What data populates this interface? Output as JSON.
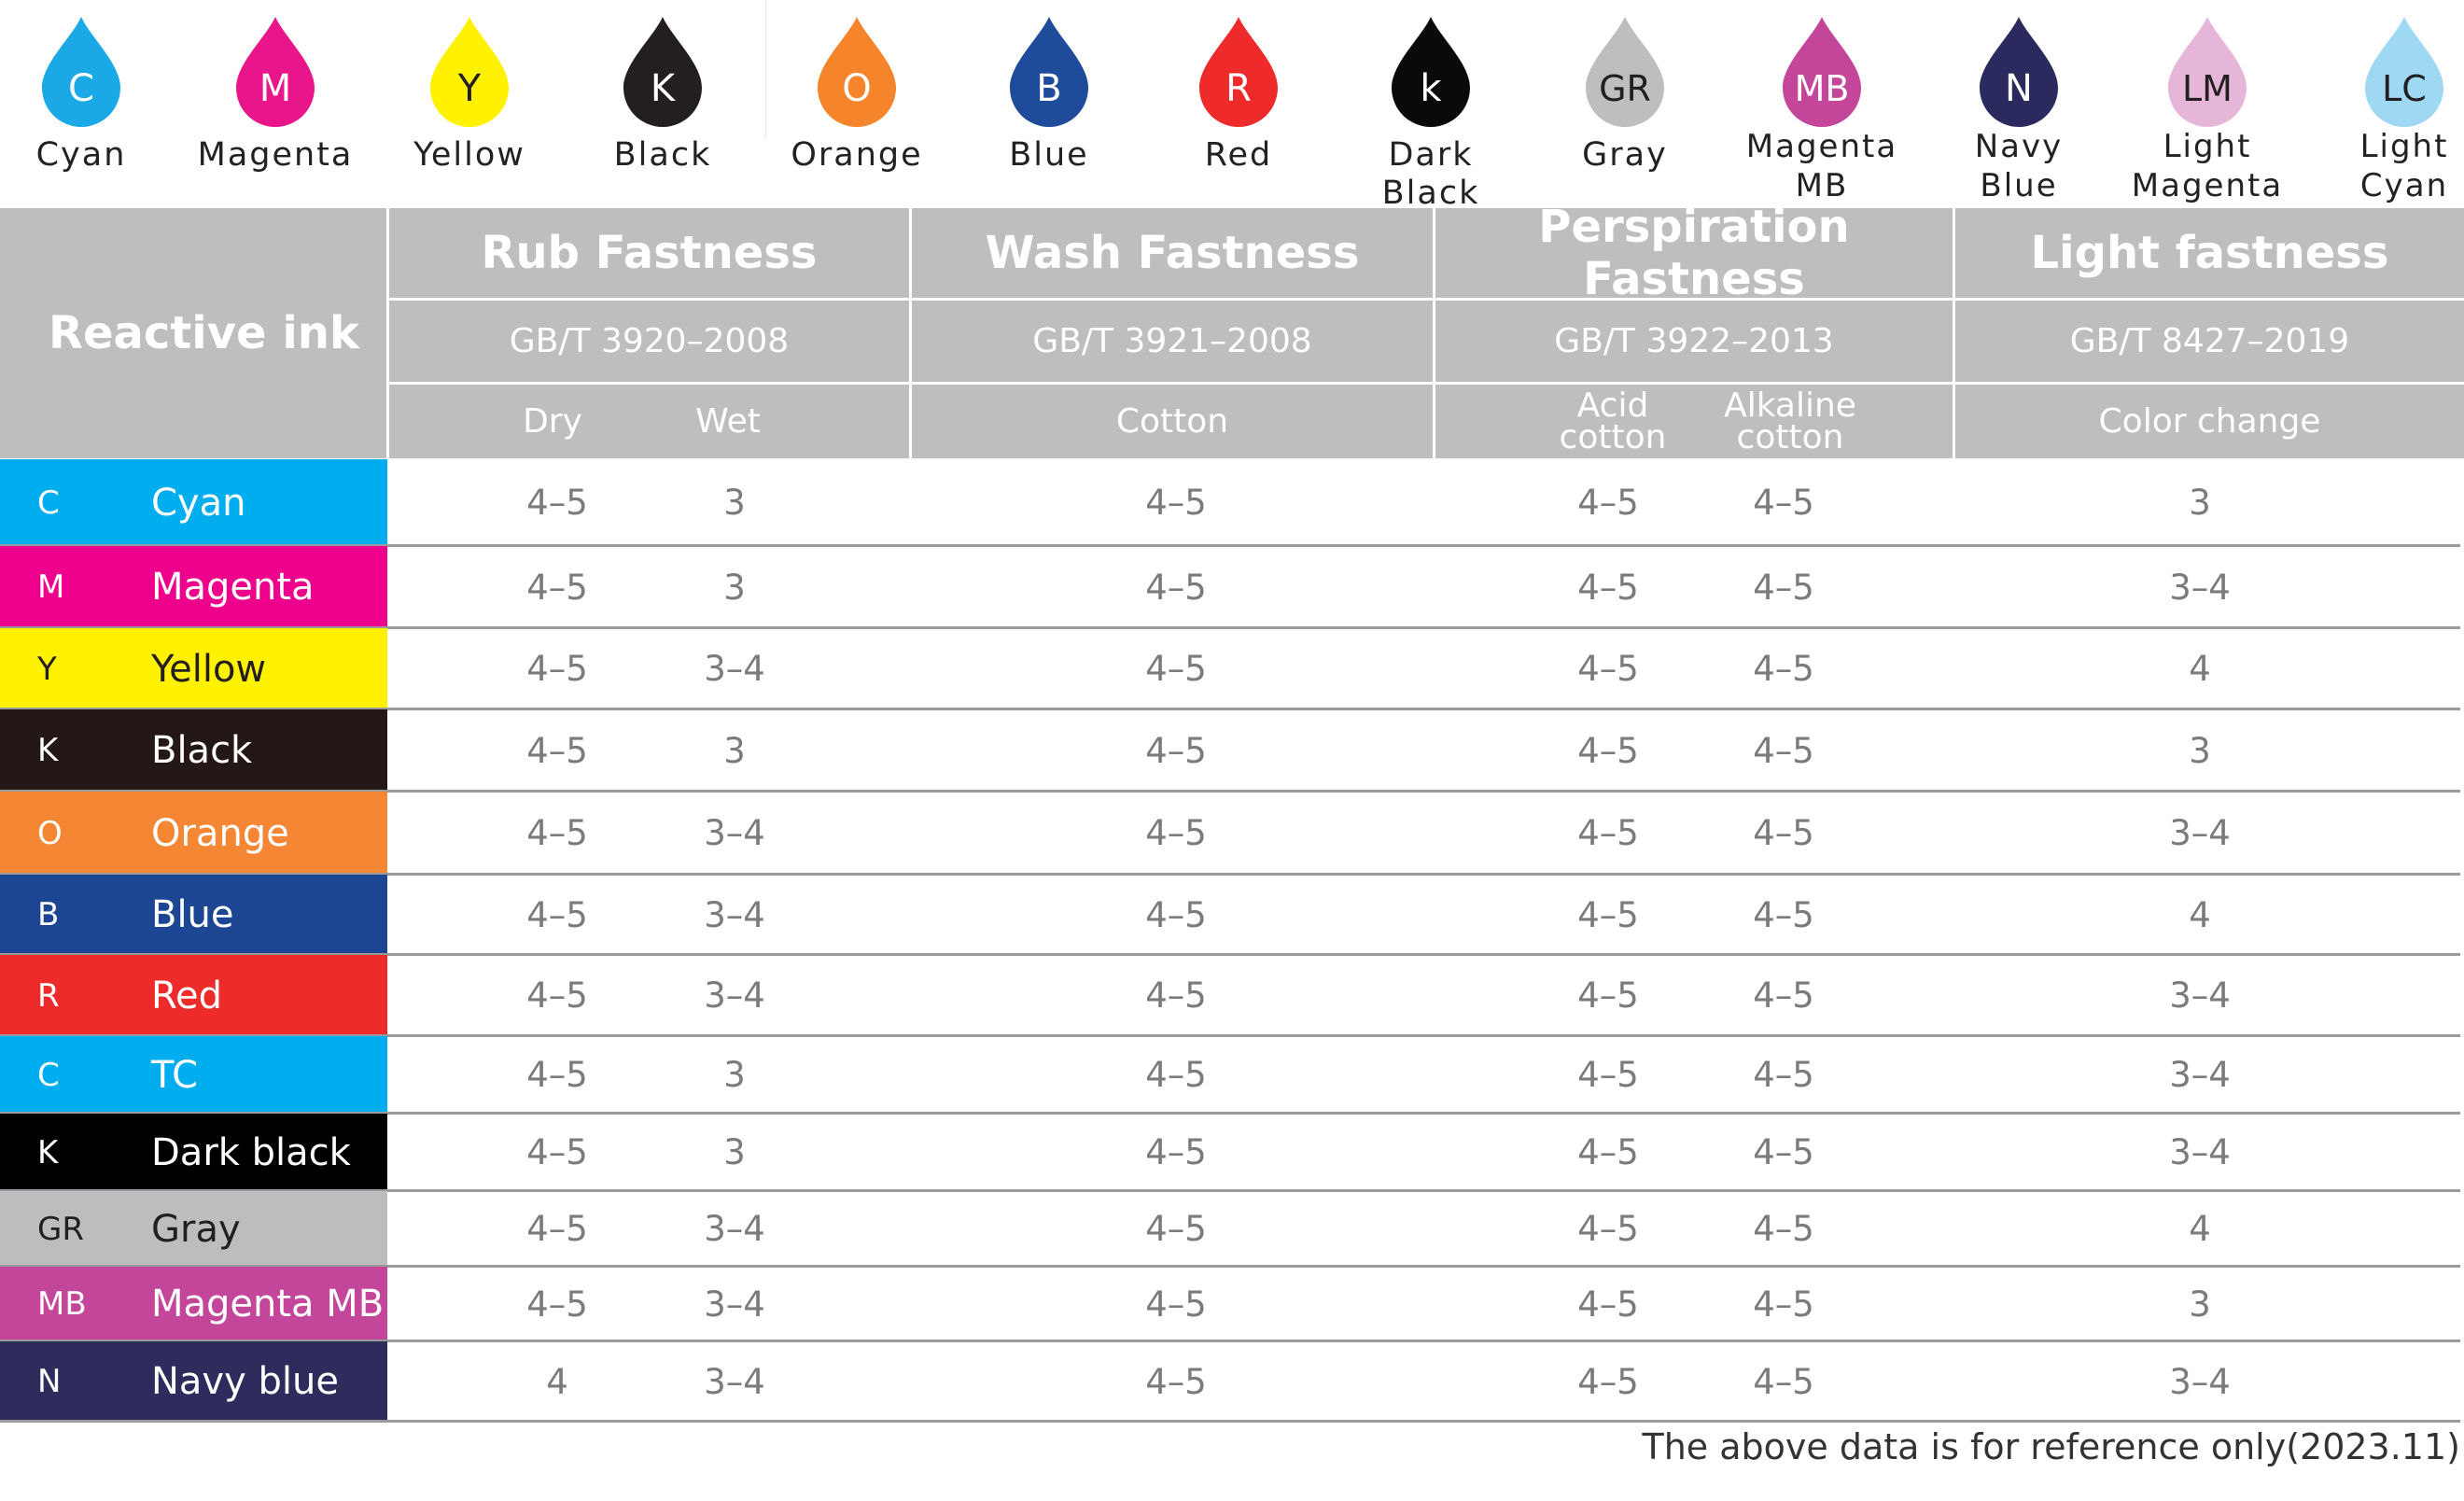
{
  "drops": [
    {
      "letter": "C",
      "name": "Cyan",
      "color": "#1aa9e6",
      "text_color": "#ffffff"
    },
    {
      "letter": "M",
      "name": "Magenta",
      "color": "#e8168a",
      "text_color": "#ffffff"
    },
    {
      "letter": "Y",
      "name": "Yellow",
      "color": "#fff100",
      "text_color": "#231f20"
    },
    {
      "letter": "K",
      "name": "Black",
      "color": "#231f20",
      "text_color": "#ffffff"
    },
    {
      "letter": "O",
      "name": "Orange",
      "color": "#f6842a",
      "text_color": "#ffffff"
    },
    {
      "letter": "B",
      "name": "Blue",
      "color": "#1f4b9b",
      "text_color": "#ffffff"
    },
    {
      "letter": "R",
      "name": "Red",
      "color": "#ee2a2a",
      "text_color": "#ffffff"
    },
    {
      "letter": "k",
      "name": "Dark Black",
      "color": "#0a0a0a",
      "text_color": "#ffffff"
    },
    {
      "letter": "GR",
      "name": "Gray",
      "color": "#bdbec0",
      "text_color": "#231f20"
    },
    {
      "letter": "MB",
      "name": "Magenta\nMB",
      "color": "#c4469b",
      "text_color": "#ffffff"
    },
    {
      "letter": "N",
      "name": "Navy\nBlue",
      "color": "#2b2a5e",
      "text_color": "#ffffff"
    },
    {
      "letter": "LM",
      "name": "Light\nMagenta",
      "color": "#e6b6d8",
      "text_color": "#231f20"
    },
    {
      "letter": "LC",
      "name": "Light\nCyan",
      "color": "#9fd8f2",
      "text_color": "#231f20"
    }
  ],
  "header": {
    "reactive_ink": "Reactive ink",
    "groups": [
      {
        "title": "Rub Fastness",
        "standard": "GB/T 3920–2008",
        "subs": [
          "Dry",
          "Wet"
        ]
      },
      {
        "title": "Wash Fastness",
        "standard": "GB/T 3921–2008",
        "subs": [
          "Cotton"
        ]
      },
      {
        "title": "Perspiration Fastness",
        "standard": "GB/T 3922–2013",
        "subs": [
          "Acid\ncotton",
          "Alkaline\ncotton"
        ]
      },
      {
        "title": "Light fastness",
        "standard": "GB/T 8427–2019",
        "subs": [
          "Color change"
        ]
      }
    ]
  },
  "rows": [
    {
      "code": "C",
      "name": "Cyan",
      "bg": "#00adee",
      "fg": "#ffffff",
      "dry": "4–5",
      "wet": "3",
      "cotton": "4–5",
      "acid": "4–5",
      "alkaline": "4–5",
      "light": "3"
    },
    {
      "code": "M",
      "name": "Magenta",
      "bg": "#ec008c",
      "fg": "#ffffff",
      "dry": "4–5",
      "wet": "3",
      "cotton": "4–5",
      "acid": "4–5",
      "alkaline": "4–5",
      "light": "3–4"
    },
    {
      "code": "Y",
      "name": "Yellow",
      "bg": "#fff200",
      "fg": "#231f20",
      "dry": "4–5",
      "wet": "3–4",
      "cotton": "4–5",
      "acid": "4–5",
      "alkaline": "4–5",
      "light": "4"
    },
    {
      "code": "K",
      "name": "Black",
      "bg": "#231815",
      "fg": "#ffffff",
      "dry": "4–5",
      "wet": "3",
      "cotton": "4–5",
      "acid": "4–5",
      "alkaline": "4–5",
      "light": "3"
    },
    {
      "code": "O",
      "name": "Orange",
      "bg": "#f58634",
      "fg": "#ffffff",
      "dry": "4–5",
      "wet": "3–4",
      "cotton": "4–5",
      "acid": "4–5",
      "alkaline": "4–5",
      "light": "3–4"
    },
    {
      "code": "B",
      "name": "Blue",
      "bg": "#1c4594",
      "fg": "#ffffff",
      "dry": "4–5",
      "wet": "3–4",
      "cotton": "4–5",
      "acid": "4–5",
      "alkaline": "4–5",
      "light": "4"
    },
    {
      "code": "R",
      "name": "Red",
      "bg": "#ee2b2b",
      "fg": "#ffffff",
      "dry": "4–5",
      "wet": "3–4",
      "cotton": "4–5",
      "acid": "4–5",
      "alkaline": "4–5",
      "light": "3–4"
    },
    {
      "code": "C",
      "name": "TC",
      "bg": "#00adee",
      "fg": "#ffffff",
      "dry": "4–5",
      "wet": "3",
      "cotton": "4–5",
      "acid": "4–5",
      "alkaline": "4–5",
      "light": "3–4"
    },
    {
      "code": "K",
      "name": "Dark black",
      "bg": "#000000",
      "fg": "#ffffff",
      "dry": "4–5",
      "wet": "3",
      "cotton": "4–5",
      "acid": "4–5",
      "alkaline": "4–5",
      "light": "3–4"
    },
    {
      "code": "GR",
      "name": "Gray",
      "bg": "#bcbdbf",
      "fg": "#231f20",
      "dry": "4–5",
      "wet": "3–4",
      "cotton": "4–5",
      "acid": "4–5",
      "alkaline": "4–5",
      "light": "4"
    },
    {
      "code": "MB",
      "name": "Magenta MB",
      "bg": "#c4469b",
      "fg": "#ffffff",
      "dry": "4–5",
      "wet": "3–4",
      "cotton": "4–5",
      "acid": "4–5",
      "alkaline": "4–5",
      "light": "3"
    },
    {
      "code": "N",
      "name": "Navy blue",
      "bg": "#2e2c5c",
      "fg": "#ffffff",
      "dry": "4",
      "wet": "3–4",
      "cotton": "4–5",
      "acid": "4–5",
      "alkaline": "4–5",
      "light": "3–4"
    }
  ],
  "footnote": "The above data is for reference only(2023.11)"
}
